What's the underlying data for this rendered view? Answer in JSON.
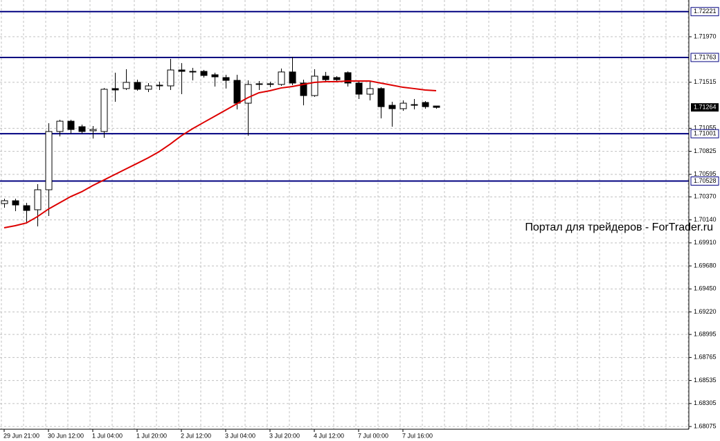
{
  "chart_data": {
    "type": "candlestick",
    "categories": [
      "29 Jun 21:00",
      null,
      null,
      null,
      "30 Jun 12:00",
      null,
      null,
      null,
      "1 Jul 04:00",
      null,
      null,
      null,
      "1 Jul 20:00",
      null,
      null,
      null,
      "2 Jul 12:00",
      null,
      null,
      null,
      "3 Jul 04:00",
      null,
      null,
      null,
      "3 Jul 20:00",
      null,
      null,
      null,
      "4 Jul 12:00",
      null,
      null,
      null,
      "7 Jul 00:00",
      null,
      null,
      null,
      "7 Jul 16:00",
      null,
      null,
      null
    ],
    "open": [
      1.70303,
      1.70331,
      1.70282,
      1.70241,
      1.70441,
      1.71023,
      1.71126,
      1.71071,
      1.7103,
      1.71023,
      1.71452,
      1.71452,
      1.71514,
      1.71445,
      1.71479,
      1.71479,
      1.71638,
      1.71624,
      1.71624,
      1.7159,
      1.71562,
      1.71534,
      1.71306,
      1.71493,
      1.715,
      1.71493,
      1.71618,
      1.71507,
      1.71382,
      1.71576,
      1.71562,
      1.71611,
      1.71507,
      1.71396,
      1.71452,
      1.71285,
      1.71251,
      1.71285,
      1.71313,
      1.71278
    ],
    "high": [
      1.70352,
      1.70352,
      1.7031,
      1.70497,
      1.71106,
      1.7114,
      1.7114,
      1.71092,
      1.71078,
      1.71458,
      1.71611,
      1.71645,
      1.71541,
      1.71507,
      1.71521,
      1.71749,
      1.71707,
      1.71659,
      1.71638,
      1.71611,
      1.7159,
      1.7159,
      1.71534,
      1.71528,
      1.71521,
      1.71652,
      1.7177,
      1.71541,
      1.71645,
      1.71618,
      1.71576,
      1.71624,
      1.71534,
      1.71521,
      1.71465,
      1.7132,
      1.71334,
      1.71348,
      1.71327,
      1.71278
    ],
    "low": [
      1.70262,
      1.70227,
      1.70103,
      1.70075,
      1.70179,
      1.70974,
      1.71002,
      1.71002,
      1.70953,
      1.7096,
      1.7132,
      1.71438,
      1.71431,
      1.71417,
      1.71438,
      1.71438,
      1.71396,
      1.71534,
      1.71562,
      1.71472,
      1.71452,
      1.71244,
      1.70981,
      1.71438,
      1.71465,
      1.71479,
      1.71486,
      1.71285,
      1.71369,
      1.71521,
      1.71521,
      1.71472,
      1.71348,
      1.71334,
      1.71154,
      1.71071,
      1.7123,
      1.71244,
      1.71251,
      1.71251
    ],
    "close": [
      1.70331,
      1.70289,
      1.70234,
      1.70441,
      1.71023,
      1.71126,
      1.71043,
      1.71023,
      1.71043,
      1.71445,
      1.71438,
      1.71514,
      1.71445,
      1.71479,
      1.71486,
      1.71638,
      1.71624,
      1.71618,
      1.71583,
      1.71569,
      1.71534,
      1.71306,
      1.71493,
      1.715,
      1.71493,
      1.71618,
      1.71507,
      1.71382,
      1.71576,
      1.71541,
      1.71541,
      1.71507,
      1.71396,
      1.71452,
      1.71271,
      1.71251,
      1.71306,
      1.71292,
      1.71271,
      1.71264
    ],
    "up_color": "#ffffff",
    "down_color": "#000000",
    "candle_outline": "#000000",
    "moving_average": {
      "color": "#dd0000",
      "values": [
        1.70061,
        1.70082,
        1.70109,
        1.70172,
        1.70248,
        1.7031,
        1.70372,
        1.70421,
        1.70483,
        1.70538,
        1.70594,
        1.70649,
        1.70704,
        1.7076,
        1.70822,
        1.70898,
        1.70981,
        1.7105,
        1.71113,
        1.71175,
        1.71237,
        1.71299,
        1.71361,
        1.7141,
        1.71431,
        1.71458,
        1.71472,
        1.71493,
        1.71514,
        1.71521,
        1.71521,
        1.71528,
        1.71528,
        1.71528,
        1.71507,
        1.71486,
        1.71465,
        1.71452,
        1.71438,
        1.71431
      ]
    },
    "levels": {
      "color": "#000080",
      "values": [
        1.72221,
        1.71763,
        1.71001,
        1.70528
      ]
    },
    "current_price": 1.71264,
    "watermark": "Портал для трейдеров - ForTrader.ru",
    "ylim": [
      1.68048,
      1.72337
    ],
    "yticks": [
      {
        "value": 1.7197,
        "label": "1.71970"
      },
      1.71515,
      1.71055,
      1.70825,
      1.70595,
      {
        "value": 1.7037,
        "label": "1.70370"
      },
      {
        "value": 1.7014,
        "label": "1.70140"
      },
      {
        "value": 1.6991,
        "label": "1.69910"
      },
      {
        "value": 1.6968,
        "label": "1.69680"
      },
      {
        "value": 1.6945,
        "label": "1.69450"
      },
      {
        "value": 1.6922,
        "label": "1.69220"
      },
      1.68995,
      1.68765,
      1.68535,
      1.68305,
      1.68075
    ],
    "grid": true
  }
}
